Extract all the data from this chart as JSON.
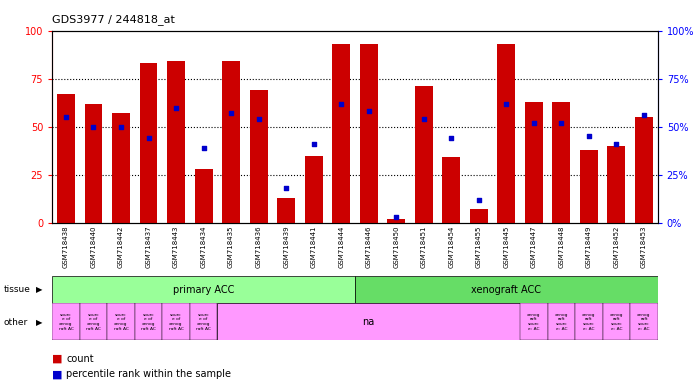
{
  "title": "GDS3977 / 244818_at",
  "samples": [
    "GSM718438",
    "GSM718440",
    "GSM718442",
    "GSM718437",
    "GSM718443",
    "GSM718434",
    "GSM718435",
    "GSM718436",
    "GSM718439",
    "GSM718441",
    "GSM718444",
    "GSM718446",
    "GSM718450",
    "GSM718451",
    "GSM718454",
    "GSM718455",
    "GSM718445",
    "GSM718447",
    "GSM718448",
    "GSM718449",
    "GSM718452",
    "GSM718453"
  ],
  "count": [
    67,
    62,
    57,
    83,
    84,
    28,
    84,
    69,
    13,
    35,
    93,
    93,
    2,
    71,
    34,
    7,
    93,
    63,
    63,
    38,
    40,
    55
  ],
  "percentile": [
    55,
    50,
    50,
    44,
    60,
    39,
    57,
    54,
    18,
    41,
    62,
    58,
    3,
    54,
    44,
    12,
    62,
    52,
    52,
    45,
    41,
    56
  ],
  "n_primary": 11,
  "n_xenograft": 11,
  "n_other_source": 6,
  "bar_color": "#cc0000",
  "percentile_color": "#0000cc",
  "primary_acc_color": "#99ff99",
  "xenograft_acc_color": "#66dd66",
  "other_pink_color": "#ff99ff",
  "ymax": 100,
  "yticks": [
    0,
    25,
    50,
    75,
    100
  ],
  "xticklabel_bg": "#cccccc"
}
